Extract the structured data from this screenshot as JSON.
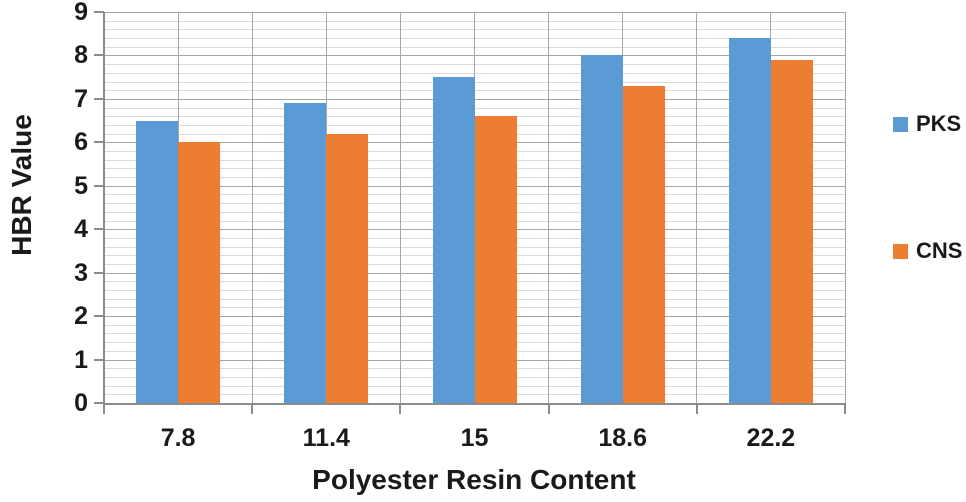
{
  "chart_data": {
    "type": "bar",
    "title": "",
    "xlabel": "Polyester Resin Content",
    "ylabel": "HBR Value",
    "categories": [
      "7.8",
      "11.4",
      "15",
      "18.6",
      "22.2"
    ],
    "series": [
      {
        "name": "PKS",
        "color": "#5B9BD5",
        "values": [
          6.5,
          6.9,
          7.5,
          8.0,
          8.4
        ]
      },
      {
        "name": "CNS",
        "color": "#ED7D31",
        "values": [
          6.0,
          6.2,
          6.6,
          7.3,
          7.9
        ]
      }
    ],
    "ylim": [
      0,
      9
    ],
    "y_ticks": [
      0,
      1,
      2,
      3,
      4,
      5,
      6,
      7,
      8,
      9
    ],
    "y_major_step": 1,
    "y_minor_step": 0.2,
    "grid": {
      "on": true,
      "minor_color": "#dadada",
      "major_color": "#a6a6a6",
      "axis_color": "#8c8c8c"
    },
    "legend_position": "right",
    "text_color": "#1a1a1a",
    "background_color": "#ffffff"
  }
}
